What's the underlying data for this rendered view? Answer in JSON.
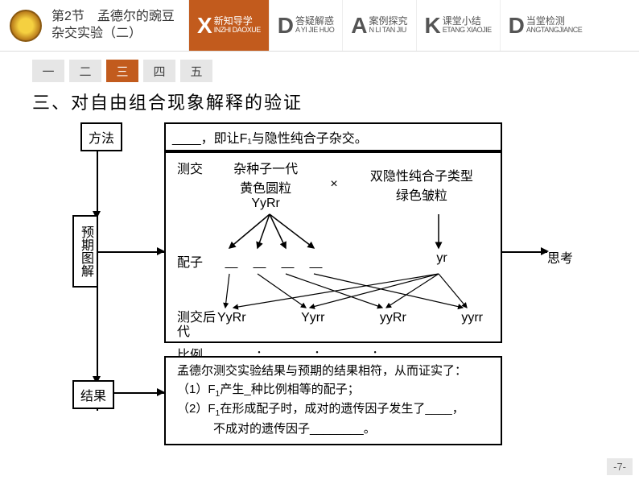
{
  "header": {
    "chapter_line1": "第2节　孟德尔的豌豆",
    "chapter_line2": "杂交实验（二）",
    "tabs": [
      {
        "big": "X",
        "cn": "新知导学",
        "py": "INZHI DAOXUE",
        "active": true
      },
      {
        "big": "D",
        "cn": "答疑解惑",
        "py": "A YI JIE HUO",
        "active": false
      },
      {
        "big": "A",
        "cn": "案例探究",
        "py": "N LI TAN JIU",
        "active": false
      },
      {
        "big": "K",
        "cn": "课堂小结",
        "py": "ETANG XIAOJIE",
        "active": false
      },
      {
        "big": "D",
        "cn": "当堂检测",
        "py": "ANGTANGJIANCE",
        "active": false
      }
    ]
  },
  "numtabs": [
    "一",
    "二",
    "三",
    "四",
    "五"
  ],
  "numtab_active": 2,
  "title": "三、对自由组合现象解释的验证",
  "labels": {
    "fangfa": "方法",
    "yuqi": "预期图解",
    "jieguo": "结果",
    "sikao": "思考"
  },
  "fangfa_text": "____，即让F₁与隐性纯合子杂交。",
  "cross": {
    "label_testcross": "测交",
    "parent1_t": "杂种子一代",
    "parent1_b": "黄色圆粒",
    "parent1_g": "YyRr",
    "x": "×",
    "parent2_t": "双隐性纯合子类型",
    "parent2_b": "绿色皱粒",
    "label_peizi": "配子",
    "gamete_r": "yr",
    "label_houdai": "测交后代",
    "offspring": [
      "YyRr",
      "Yyrr",
      "yyRr",
      "yyrr"
    ],
    "label_bili": "比例",
    "ratio_sep": "："
  },
  "jieguo_text": {
    "l1": "孟德尔测交实验结果与预期的结果相符，从而证实了：",
    "l2a": "（1）F",
    "l2b": "产生_种比例相等的配子；",
    "l3a": "（2）F",
    "l3b": "在形成配子时，成对的遗传因子发生了____，",
    "l4": "　　　不成对的遗传因子________。"
  },
  "page_num": "-7-",
  "colors": {
    "accent": "#c25b1d",
    "tab_bg": "#e6e6e6"
  }
}
